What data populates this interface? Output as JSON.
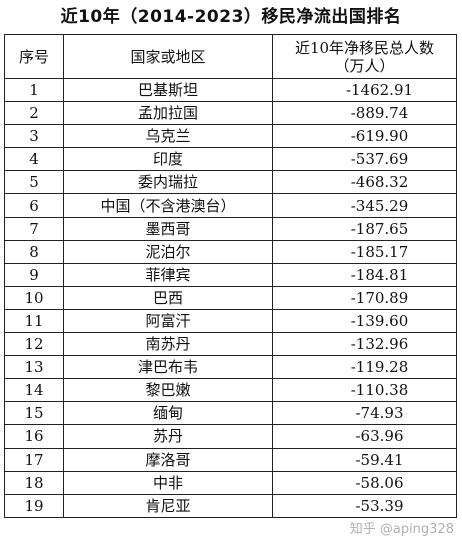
{
  "title": "近10年（2014-2023）移民净流出国排名",
  "headers": {
    "rank": "序号",
    "country": "国家或地区",
    "value_line1": "近10年净移民总人数",
    "value_line2": "（万人）"
  },
  "rows": [
    {
      "rank": "1",
      "country": "巴基斯坦",
      "value": "-1462.91"
    },
    {
      "rank": "2",
      "country": "孟加拉国",
      "value": "-889.74"
    },
    {
      "rank": "3",
      "country": "乌克兰",
      "value": "-619.90"
    },
    {
      "rank": "4",
      "country": "印度",
      "value": "-537.69"
    },
    {
      "rank": "5",
      "country": "委内瑞拉",
      "value": "-468.32"
    },
    {
      "rank": "6",
      "country": "中国（不含港澳台）",
      "value": "-345.29"
    },
    {
      "rank": "7",
      "country": "墨西哥",
      "value": "-187.65"
    },
    {
      "rank": "8",
      "country": "泥泊尔",
      "value": "-185.17"
    },
    {
      "rank": "9",
      "country": "菲律宾",
      "value": "-184.81"
    },
    {
      "rank": "10",
      "country": "巴西",
      "value": "-170.89"
    },
    {
      "rank": "11",
      "country": "阿富汗",
      "value": "-139.60"
    },
    {
      "rank": "12",
      "country": "南苏丹",
      "value": "-132.96"
    },
    {
      "rank": "13",
      "country": "津巴布韦",
      "value": "-119.28"
    },
    {
      "rank": "14",
      "country": "黎巴嫩",
      "value": "-110.38"
    },
    {
      "rank": "15",
      "country": "缅甸",
      "value": "-74.93"
    },
    {
      "rank": "16",
      "country": "苏丹",
      "value": "-63.96"
    },
    {
      "rank": "17",
      "country": "摩洛哥",
      "value": "-59.41"
    },
    {
      "rank": "18",
      "country": "中非",
      "value": "-58.06"
    },
    {
      "rank": "19",
      "country": "肯尼亚",
      "value": "-53.39"
    }
  ],
  "watermark": "知乎 @aping328"
}
